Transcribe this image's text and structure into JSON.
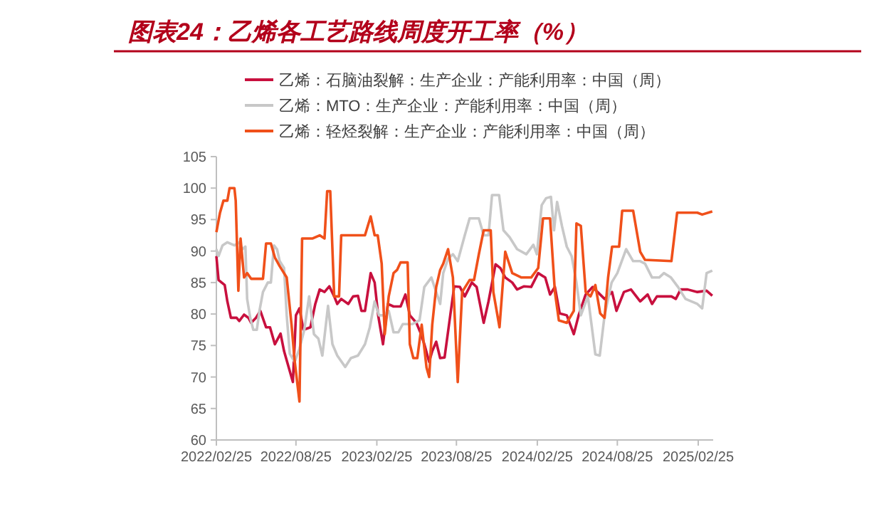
{
  "chart_data": {
    "type": "line",
    "title": "图表24：乙烯各工艺路线周度开工率（%）",
    "legend": "top",
    "grid": false,
    "marker": "none",
    "line_style": "solid",
    "xlim": [
      "2022-02-25",
      "2025-03-31"
    ],
    "xticks": [
      {
        "value": "2022-02-25",
        "label": "2022/02/25"
      },
      {
        "value": "2022-08-25",
        "label": "2022/08/25"
      },
      {
        "value": "2023-02-25",
        "label": "2023/02/25"
      },
      {
        "value": "2023-08-25",
        "label": "2023/08/25"
      },
      {
        "value": "2024-02-25",
        "label": "2024/02/25"
      },
      {
        "value": "2024-08-25",
        "label": "2024/08/25"
      },
      {
        "value": "2025-02-25",
        "label": "2025/02/25"
      }
    ],
    "ylim": [
      60,
      105
    ],
    "yticks": [
      60,
      65,
      70,
      75,
      80,
      85,
      90,
      95,
      100,
      105
    ],
    "series": [
      {
        "name": "乙烯：石脑油裂解：生产企业：产能利用率：中国（周）",
        "color": "#c8103e",
        "x": [
          "2022-02-25",
          "2022-03-02",
          "2022-03-16",
          "2022-03-22",
          "2022-03-30",
          "2022-04-12",
          "2022-04-18",
          "2022-04-29",
          "2022-05-09",
          "2022-05-15",
          "2022-05-26",
          "2022-06-05",
          "2022-06-18",
          "2022-06-27",
          "2022-07-08",
          "2022-07-21",
          "2022-07-29",
          "2022-08-07",
          "2022-08-18",
          "2022-08-25",
          "2022-09-02",
          "2022-09-11",
          "2022-09-27",
          "2022-10-08",
          "2022-10-18",
          "2022-10-29",
          "2022-11-09",
          "2022-11-20",
          "2022-11-27",
          "2022-12-06",
          "2022-12-22",
          "2023-01-02",
          "2023-01-13",
          "2023-01-21",
          "2023-01-29",
          "2023-02-11",
          "2023-02-20",
          "2023-02-28",
          "2023-03-11",
          "2023-03-22",
          "2023-04-04",
          "2023-04-20",
          "2023-05-01",
          "2023-05-11",
          "2023-05-26",
          "2023-06-05",
          "2023-06-13",
          "2023-06-24",
          "2023-07-01",
          "2023-07-10",
          "2023-07-19",
          "2023-07-29",
          "2023-08-11",
          "2023-08-20",
          "2023-09-02",
          "2023-09-13",
          "2023-09-29",
          "2023-10-10",
          "2023-10-26",
          "2023-11-06",
          "2023-11-22",
          "2023-12-03",
          "2023-12-14",
          "2023-12-30",
          "2024-01-10",
          "2024-01-26",
          "2024-02-11",
          "2024-02-27",
          "2024-03-14",
          "2024-03-25",
          "2024-04-05",
          "2024-04-16",
          "2024-05-02",
          "2024-05-18",
          "2024-05-29",
          "2024-06-14",
          "2024-06-30",
          "2024-07-11",
          "2024-07-27",
          "2024-08-13",
          "2024-08-23",
          "2024-09-09",
          "2024-09-25",
          "2024-10-16",
          "2024-11-02",
          "2024-11-12",
          "2024-11-23",
          "2024-12-26",
          "2025-01-05",
          "2025-01-16",
          "2025-02-01",
          "2025-02-23",
          "2025-03-16",
          "2025-03-29"
        ],
        "values": [
          89.2,
          85.4,
          84.6,
          82,
          79.4,
          79.4,
          78.9,
          79.9,
          79.4,
          78.6,
          79.4,
          80.5,
          77.9,
          77.9,
          75.2,
          76.9,
          74.1,
          71.9,
          69.2,
          79.8,
          80.9,
          77.5,
          77.9,
          81.6,
          83.9,
          83.5,
          84.4,
          82.8,
          81.6,
          82.4,
          81.6,
          82.8,
          82.9,
          80.5,
          80.5,
          86.5,
          85,
          79.8,
          75.2,
          81.6,
          81.2,
          81.2,
          83.1,
          79.8,
          78.6,
          76.9,
          75.2,
          72.4,
          74.1,
          75.6,
          73,
          73.1,
          79.8,
          84.4,
          84.3,
          82.8,
          85,
          84.3,
          78.6,
          82,
          87.9,
          87.3,
          85.8,
          85,
          83.9,
          84.4,
          84.3,
          86.5,
          85.8,
          83.1,
          84.3,
          80.1,
          79.8,
          76.8,
          79.8,
          83.1,
          84.3,
          83.5,
          82.4,
          83.5,
          80.5,
          83.5,
          83.9,
          82,
          83.1,
          81.6,
          82.8,
          82.8,
          82.4,
          83.9,
          83.9,
          83.5,
          83.7,
          82.9
        ]
      },
      {
        "name": "乙烯：MTO：生产企业：产能利用率：中国（周）",
        "color": "#c8c8c8",
        "x": [
          "2022-02-25",
          "2022-03-02",
          "2022-03-11",
          "2022-03-22",
          "2022-04-07",
          "2022-04-18",
          "2022-04-25",
          "2022-05-02",
          "2022-05-06",
          "2022-05-13",
          "2022-05-20",
          "2022-05-28",
          "2022-06-03",
          "2022-06-11",
          "2022-06-22",
          "2022-06-29",
          "2022-07-06",
          "2022-07-13",
          "2022-07-19",
          "2022-07-29",
          "2022-08-04",
          "2022-08-11",
          "2022-08-22",
          "2022-09-02",
          "2022-09-13",
          "2022-09-24",
          "2022-10-05",
          "2022-10-15",
          "2022-10-24",
          "2022-11-06",
          "2022-11-16",
          "2022-11-27",
          "2022-12-15",
          "2022-12-28",
          "2023-01-13",
          "2023-01-29",
          "2023-02-09",
          "2023-02-20",
          "2023-03-02",
          "2023-03-13",
          "2023-03-24",
          "2023-04-04",
          "2023-04-15",
          "2023-04-25",
          "2023-05-17",
          "2023-06-02",
          "2023-06-13",
          "2023-06-29",
          "2023-07-10",
          "2023-07-19",
          "2023-07-26",
          "2023-08-06",
          "2023-08-17",
          "2023-08-28",
          "2023-09-13",
          "2023-09-24",
          "2023-10-15",
          "2023-10-26",
          "2023-11-06",
          "2023-11-14",
          "2023-11-30",
          "2023-12-10",
          "2023-12-24",
          "2024-01-10",
          "2024-01-31",
          "2024-02-16",
          "2024-02-24",
          "2024-03-06",
          "2024-03-16",
          "2024-03-27",
          "2024-04-03",
          "2024-04-10",
          "2024-04-21",
          "2024-05-02",
          "2024-05-13",
          "2024-05-24",
          "2024-06-03",
          "2024-06-19",
          "2024-07-06",
          "2024-07-16",
          "2024-07-27",
          "2024-08-12",
          "2024-08-25",
          "2024-09-14",
          "2024-09-30",
          "2024-10-16",
          "2024-10-27",
          "2024-11-12",
          "2024-11-28",
          "2024-12-09",
          "2024-12-25",
          "2025-01-10",
          "2025-01-27",
          "2025-02-23",
          "2025-03-06",
          "2025-03-16",
          "2025-03-29"
        ],
        "values": [
          90.3,
          89.2,
          90.9,
          91.4,
          90.9,
          91.4,
          90.3,
          90.7,
          82.4,
          79.4,
          77.5,
          77.5,
          80.5,
          83.5,
          85,
          85,
          90.9,
          90.3,
          88.4,
          87.3,
          79.8,
          73.7,
          72.4,
          74.5,
          77.5,
          82.8,
          76.8,
          76.1,
          73.4,
          81.3,
          75.2,
          73.4,
          71.6,
          73,
          73.4,
          75.2,
          77.9,
          82,
          79.8,
          79.8,
          80.5,
          77.1,
          77.1,
          78.4,
          78.4,
          79,
          84.3,
          85.8,
          83.5,
          81.6,
          86.5,
          88.8,
          89.5,
          88.4,
          92.5,
          95.2,
          95.2,
          92.5,
          92.5,
          98.9,
          98.9,
          93.3,
          92.2,
          90.3,
          89.5,
          91,
          89.5,
          97.3,
          98.4,
          98.6,
          93.3,
          97.8,
          94,
          90.7,
          89.2,
          85,
          79.8,
          82.8,
          73.6,
          73.4,
          79.8,
          85,
          86.5,
          90.3,
          88.4,
          88.4,
          88,
          85.8,
          85.8,
          86.5,
          85.8,
          84.3,
          82.4,
          81.6,
          80.9,
          86.5,
          86.9
        ]
      },
      {
        "name": "乙烯：轻烃裂解：生产企业：产能利用率：中国（周）",
        "color": "#f0501a",
        "x": [
          "2022-02-25",
          "2022-03-05",
          "2022-03-13",
          "2022-03-22",
          "2022-03-27",
          "2022-04-07",
          "2022-04-10",
          "2022-04-16",
          "2022-04-21",
          "2022-04-29",
          "2022-05-06",
          "2022-05-15",
          "2022-06-11",
          "2022-06-18",
          "2022-06-29",
          "2022-07-08",
          "2022-07-19",
          "2022-08-04",
          "2022-08-15",
          "2022-08-22",
          "2022-09-02",
          "2022-09-08",
          "2022-10-02",
          "2022-10-18",
          "2022-10-29",
          "2022-11-04",
          "2022-11-11",
          "2022-11-20",
          "2022-12-01",
          "2022-12-06",
          "2023-01-29",
          "2023-02-11",
          "2023-02-20",
          "2023-02-27",
          "2023-03-08",
          "2023-03-15",
          "2023-03-24",
          "2023-04-04",
          "2023-04-12",
          "2023-04-20",
          "2023-05-06",
          "2023-05-11",
          "2023-05-19",
          "2023-05-28",
          "2023-06-07",
          "2023-06-18",
          "2023-06-24",
          "2023-07-01",
          "2023-07-10",
          "2023-07-19",
          "2023-07-26",
          "2023-08-06",
          "2023-08-17",
          "2023-08-28",
          "2023-09-07",
          "2023-09-24",
          "2023-10-04",
          "2023-10-15",
          "2023-10-26",
          "2023-11-11",
          "2023-11-17",
          "2023-12-01",
          "2023-12-14",
          "2023-12-30",
          "2024-01-20",
          "2024-02-11",
          "2024-02-27",
          "2024-03-09",
          "2024-03-25",
          "2024-04-05",
          "2024-04-14",
          "2024-05-02",
          "2024-05-18",
          "2024-05-24",
          "2024-06-03",
          "2024-06-14",
          "2024-06-25",
          "2024-07-06",
          "2024-07-17",
          "2024-07-27",
          "2024-08-04",
          "2024-08-13",
          "2024-08-29",
          "2024-09-05",
          "2024-09-30",
          "2024-10-16",
          "2024-10-27",
          "2024-12-26",
          "2025-01-08",
          "2025-02-23",
          "2025-03-06",
          "2025-03-29"
        ],
        "values": [
          93,
          96,
          98,
          98,
          100,
          100,
          98,
          83.7,
          92,
          85.8,
          86.5,
          85.6,
          85.6,
          91.2,
          91.2,
          89,
          87.6,
          85.8,
          78.3,
          72.6,
          66.1,
          92,
          92,
          92.5,
          92,
          99.5,
          99.5,
          82.8,
          82.8,
          92.5,
          92.5,
          95.5,
          92.5,
          92.5,
          88,
          76.8,
          82.8,
          86.5,
          87,
          88.2,
          88.2,
          75.2,
          73,
          73,
          78.3,
          71.5,
          70,
          78.3,
          84.3,
          87,
          88,
          90.3,
          85.8,
          69.2,
          83.5,
          85.4,
          85.4,
          89.5,
          93.3,
          93.3,
          83.5,
          77.9,
          89.9,
          86.5,
          85.8,
          85.8,
          87.3,
          95.2,
          95.2,
          83.5,
          79,
          78.6,
          80.5,
          94.4,
          94,
          83.5,
          82.8,
          84.6,
          80.1,
          79.4,
          85.8,
          90.7,
          90.7,
          96.4,
          96.4,
          89.9,
          88.6,
          88.4,
          96.1,
          96.1,
          95.8,
          96.3
        ]
      }
    ]
  }
}
